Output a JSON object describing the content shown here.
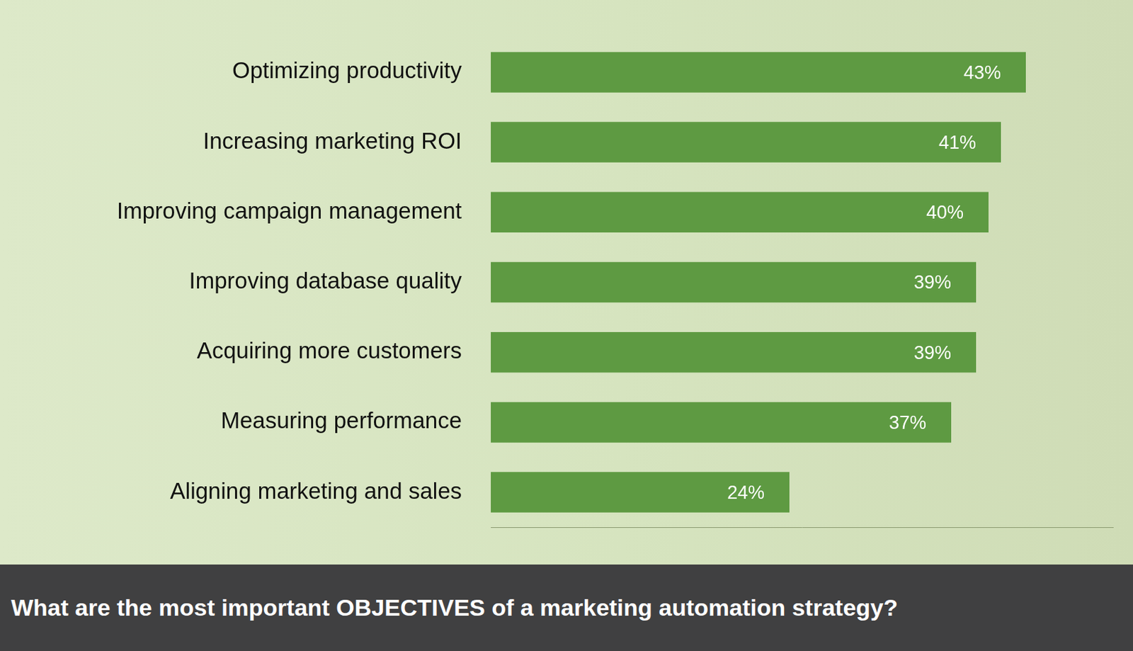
{
  "chart_data": {
    "type": "bar",
    "orientation": "horizontal",
    "title": "What are the most important OBJECTIVES of a marketing automation strategy?",
    "categories": [
      "Optimizing productivity",
      "Increasing marketing ROI",
      "Improving campaign management",
      "Improving database quality",
      "Acquiring more customers",
      "Measuring performance",
      "Aligning marketing and sales"
    ],
    "values": [
      43,
      41,
      40,
      39,
      39,
      37,
      24
    ],
    "value_labels": [
      "43%",
      "41%",
      "40%",
      "39%",
      "39%",
      "37%",
      "24%"
    ],
    "color": "#5e9a42",
    "xlim": [
      0,
      50
    ],
    "grid": false,
    "data_labels": true,
    "tick_labels": "y"
  }
}
